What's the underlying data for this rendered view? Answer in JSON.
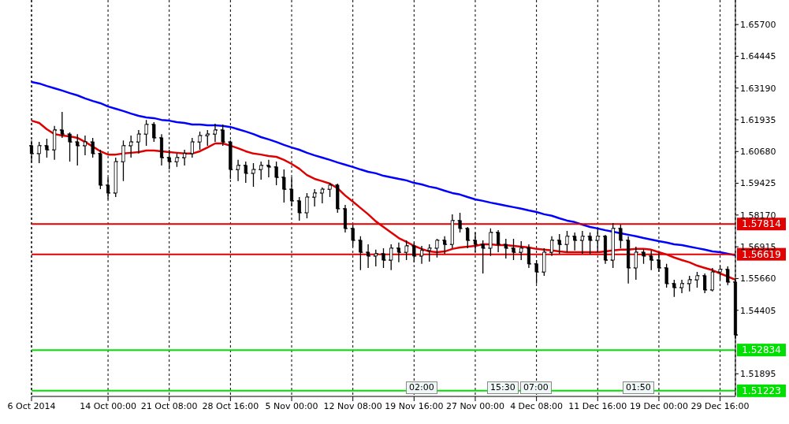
{
  "chart_data": {
    "type": "candlestick",
    "categories": [
      "6 Oct 2014",
      null,
      null,
      null,
      null,
      null,
      null,
      null,
      null,
      null,
      "14 Oct 00:00",
      null,
      null,
      null,
      null,
      null,
      null,
      null,
      "21 Oct 08:00",
      null,
      null,
      null,
      null,
      null,
      null,
      null,
      "28 Oct 16:00",
      null,
      null,
      null,
      null,
      null,
      null,
      null,
      "5 Nov 00:00",
      null,
      null,
      null,
      null,
      null,
      null,
      null,
      "12 Nov 08:00",
      null,
      null,
      null,
      null,
      null,
      null,
      null,
      "19 Nov 16:00",
      null,
      null,
      null,
      null,
      null,
      null,
      null,
      "27 Nov 00:00",
      null,
      null,
      null,
      null,
      null,
      null,
      null,
      "4 Dec 08:00",
      null,
      null,
      null,
      null,
      null,
      null,
      null,
      "11 Dec 16:00",
      null,
      null,
      null,
      null,
      null,
      null,
      null,
      "19 Dec 00:00",
      null,
      null,
      null,
      null,
      null,
      null,
      null,
      "29 Dec 16:00",
      null,
      null
    ],
    "series": [
      {
        "color": "#000000",
        "ohlc": [
          [
            1.6091,
            1.6112,
            1.6028,
            1.606
          ],
          [
            1.606,
            1.6106,
            1.6022,
            1.6091
          ],
          [
            1.6091,
            1.6119,
            1.6044,
            1.6075
          ],
          [
            1.6075,
            1.6169,
            1.6035,
            1.6153
          ],
          [
            1.6153,
            1.6225,
            1.6122,
            1.6137
          ],
          [
            1.6137,
            1.6144,
            1.6028,
            1.6106
          ],
          [
            1.6106,
            1.6137,
            1.6013,
            1.6091
          ],
          [
            1.6091,
            1.6131,
            1.6053,
            1.6106
          ],
          [
            1.6106,
            1.6122,
            1.6044,
            1.606
          ],
          [
            1.606,
            1.6075,
            1.5919,
            1.5935
          ],
          [
            1.5935,
            1.5966,
            1.5879,
            1.5904
          ],
          [
            1.5904,
            1.6044,
            1.5888,
            1.6028
          ],
          [
            1.6028,
            1.6112,
            1.5951,
            1.6091
          ],
          [
            1.6091,
            1.6131,
            1.6044,
            1.6106
          ],
          [
            1.6106,
            1.6153,
            1.606,
            1.6137
          ],
          [
            1.6137,
            1.6193,
            1.6091,
            1.6175
          ],
          [
            1.6175,
            1.6184,
            1.6106,
            1.6122
          ],
          [
            1.6122,
            1.6137,
            1.6013,
            1.6044
          ],
          [
            1.6044,
            1.6075,
            1.5997,
            1.6028
          ],
          [
            1.6028,
            1.606,
            1.6007,
            1.6044
          ],
          [
            1.6044,
            1.6075,
            1.6013,
            1.606
          ],
          [
            1.606,
            1.6122,
            1.6044,
            1.6106
          ],
          [
            1.6106,
            1.6147,
            1.6075,
            1.6131
          ],
          [
            1.6131,
            1.6153,
            1.6091,
            1.6137
          ],
          [
            1.6137,
            1.6178,
            1.6106,
            1.6153
          ],
          [
            1.6153,
            1.6175,
            1.6091,
            1.6106
          ],
          [
            1.6106,
            1.6112,
            1.596,
            1.5997
          ],
          [
            1.5997,
            1.6035,
            1.5951,
            1.6013
          ],
          [
            1.6013,
            1.6028,
            1.5944,
            1.5982
          ],
          [
            1.5982,
            1.6022,
            1.5929,
            1.5997
          ],
          [
            1.5997,
            1.6028,
            1.5957,
            1.6013
          ],
          [
            1.6013,
            1.6035,
            1.5966,
            1.6007
          ],
          [
            1.6007,
            1.6028,
            1.5935,
            1.5966
          ],
          [
            1.5966,
            1.5997,
            1.5866,
            1.5919
          ],
          [
            1.5919,
            1.5966,
            1.5851,
            1.5873
          ],
          [
            1.5873,
            1.5888,
            1.5795,
            1.5826
          ],
          [
            1.5826,
            1.5904,
            1.5804,
            1.5888
          ],
          [
            1.5888,
            1.5919,
            1.5851,
            1.5904
          ],
          [
            1.5904,
            1.5926,
            1.5863,
            1.5919
          ],
          [
            1.5919,
            1.5944,
            1.5888,
            1.5935
          ],
          [
            1.5935,
            1.5941,
            1.5826,
            1.5842
          ],
          [
            1.5842,
            1.5857,
            1.5748,
            1.5764
          ],
          [
            1.5764,
            1.5779,
            1.5692,
            1.5717
          ],
          [
            1.5717,
            1.5733,
            1.5599,
            1.567
          ],
          [
            1.567,
            1.5701,
            1.5608,
            1.5655
          ],
          [
            1.5655,
            1.568,
            1.5614,
            1.5664
          ],
          [
            1.5664,
            1.5686,
            1.5608,
            1.5639
          ],
          [
            1.5639,
            1.5701,
            1.5599,
            1.5686
          ],
          [
            1.5686,
            1.5708,
            1.563,
            1.567
          ],
          [
            1.567,
            1.5717,
            1.5639,
            1.5695
          ],
          [
            1.5695,
            1.5708,
            1.563,
            1.5655
          ],
          [
            1.5655,
            1.5695,
            1.5624,
            1.5677
          ],
          [
            1.5677,
            1.5701,
            1.5633,
            1.5686
          ],
          [
            1.5686,
            1.5723,
            1.5649,
            1.5717
          ],
          [
            1.5717,
            1.5733,
            1.5664,
            1.5701
          ],
          [
            1.5701,
            1.582,
            1.5686,
            1.5795
          ],
          [
            1.5795,
            1.5826,
            1.5748,
            1.5764
          ],
          [
            1.5764,
            1.577,
            1.5686,
            1.5717
          ],
          [
            1.5717,
            1.5748,
            1.567,
            1.5701
          ],
          [
            1.5701,
            1.5717,
            1.5586,
            1.5686
          ],
          [
            1.5686,
            1.5764,
            1.5655,
            1.5748
          ],
          [
            1.5748,
            1.5757,
            1.567,
            1.5701
          ],
          [
            1.5701,
            1.5723,
            1.5645,
            1.5686
          ],
          [
            1.5686,
            1.5723,
            1.5639,
            1.567
          ],
          [
            1.567,
            1.5714,
            1.5639,
            1.5686
          ],
          [
            1.5686,
            1.5701,
            1.5608,
            1.5624
          ],
          [
            1.5624,
            1.5639,
            1.5546,
            1.5592
          ],
          [
            1.5592,
            1.5686,
            1.5577,
            1.567
          ],
          [
            1.567,
            1.5733,
            1.5655,
            1.5717
          ],
          [
            1.5717,
            1.5742,
            1.5664,
            1.5701
          ],
          [
            1.5701,
            1.5754,
            1.567,
            1.5733
          ],
          [
            1.5733,
            1.5748,
            1.5677,
            1.5717
          ],
          [
            1.5717,
            1.5754,
            1.5664,
            1.5733
          ],
          [
            1.5733,
            1.5748,
            1.5661,
            1.5717
          ],
          [
            1.5717,
            1.5764,
            1.567,
            1.5733
          ],
          [
            1.5733,
            1.5739,
            1.5624,
            1.5639
          ],
          [
            1.5639,
            1.5785,
            1.5608,
            1.5764
          ],
          [
            1.5764,
            1.5779,
            1.5686,
            1.5717
          ],
          [
            1.5717,
            1.5733,
            1.5546,
            1.5608
          ],
          [
            1.5608,
            1.5692,
            1.5561,
            1.567
          ],
          [
            1.567,
            1.568,
            1.5624,
            1.5655
          ],
          [
            1.5655,
            1.5677,
            1.5599,
            1.5639
          ],
          [
            1.5639,
            1.567,
            1.5592,
            1.5608
          ],
          [
            1.5608,
            1.5624,
            1.553,
            1.5546
          ],
          [
            1.5546,
            1.5561,
            1.5493,
            1.553
          ],
          [
            1.553,
            1.5561,
            1.5508,
            1.5546
          ],
          [
            1.5546,
            1.5577,
            1.5515,
            1.5561
          ],
          [
            1.5561,
            1.5592,
            1.553,
            1.5577
          ],
          [
            1.5577,
            1.5586,
            1.5508,
            1.5521
          ],
          [
            1.5521,
            1.5608,
            1.5515,
            1.5592
          ],
          [
            1.5592,
            1.5617,
            1.5561,
            1.5602
          ],
          [
            1.5602,
            1.5614,
            1.554,
            1.5552
          ],
          [
            1.5552,
            1.5561,
            1.5328,
            1.5343
          ]
        ]
      },
      {
        "type": "line",
        "color": "#e00000",
        "values": [
          1.619,
          1.6181,
          1.6156,
          1.6137,
          1.6131,
          1.6128,
          1.6122,
          1.6106,
          1.6088,
          1.6069,
          1.6056,
          1.6056,
          1.606,
          1.6063,
          1.6066,
          1.6072,
          1.6072,
          1.6069,
          1.6066,
          1.6063,
          1.606,
          1.606,
          1.6069,
          1.6084,
          1.61,
          1.61,
          1.6091,
          1.6081,
          1.6069,
          1.606,
          1.6056,
          1.605,
          1.6047,
          1.6035,
          1.6019,
          1.6,
          1.5975,
          1.596,
          1.5951,
          1.5941,
          1.5923,
          1.5894,
          1.587,
          1.5845,
          1.582,
          1.5792,
          1.577,
          1.5748,
          1.5726,
          1.5711,
          1.5695,
          1.5683,
          1.5673,
          1.567,
          1.5673,
          1.5683,
          1.5689,
          1.5692,
          1.5695,
          1.5701,
          1.5701,
          1.5698,
          1.5698,
          1.5695,
          1.5692,
          1.5689,
          1.5683,
          1.568,
          1.5677,
          1.5673,
          1.567,
          1.567,
          1.567,
          1.567,
          1.567,
          1.5673,
          1.5677,
          1.568,
          1.568,
          1.5683,
          1.5683,
          1.568,
          1.567,
          1.5661,
          1.5649,
          1.5639,
          1.563,
          1.5617,
          1.5608,
          1.5599,
          1.5586,
          1.5574,
          1.5561
        ]
      },
      {
        "type": "line",
        "color": "#0000ff",
        "values": [
          1.6343,
          1.6337,
          1.6327,
          1.6318,
          1.6309,
          1.6299,
          1.629,
          1.6278,
          1.6268,
          1.6259,
          1.6246,
          1.6237,
          1.6228,
          1.6218,
          1.6209,
          1.6203,
          1.62,
          1.6193,
          1.619,
          1.6184,
          1.6181,
          1.6175,
          1.6175,
          1.6172,
          1.6172,
          1.6169,
          1.6165,
          1.6156,
          1.6147,
          1.6137,
          1.6125,
          1.6116,
          1.6106,
          1.6094,
          1.6084,
          1.6075,
          1.6063,
          1.6053,
          1.6044,
          1.6035,
          1.6025,
          1.6016,
          1.6007,
          1.5997,
          1.5988,
          1.5982,
          1.5972,
          1.5966,
          1.596,
          1.5954,
          1.5944,
          1.5938,
          1.5929,
          1.5923,
          1.5913,
          1.5904,
          1.5898,
          1.5888,
          1.5879,
          1.5873,
          1.5866,
          1.586,
          1.5854,
          1.5848,
          1.5842,
          1.5835,
          1.5829,
          1.582,
          1.5814,
          1.5804,
          1.5795,
          1.5789,
          1.5779,
          1.577,
          1.5764,
          1.5757,
          1.5751,
          1.5745,
          1.5739,
          1.5733,
          1.5726,
          1.572,
          1.5714,
          1.5708,
          1.5701,
          1.5698,
          1.5692,
          1.5686,
          1.568,
          1.5673,
          1.567,
          1.5664,
          1.5658
        ]
      }
    ],
    "ylim": [
      1.51,
      1.6667
    ],
    "yticks": [
      {
        "value": 1.657,
        "label": "1.65700"
      },
      {
        "value": 1.64445,
        "label": "1.64445"
      },
      {
        "value": 1.6319,
        "label": "1.63190"
      },
      {
        "value": 1.61935,
        "label": "1.61935"
      },
      {
        "value": 1.6068,
        "label": "1.60680"
      },
      {
        "value": 1.59425,
        "label": "1.59425"
      },
      {
        "value": 1.5817,
        "label": "1.58170"
      },
      {
        "value": 1.56915,
        "label": "1.56915"
      },
      {
        "value": 1.5566,
        "label": "1.55660"
      },
      {
        "value": 1.54405,
        "label": "1.54405"
      },
      {
        "value": 1.51895,
        "label": "1.51895"
      }
    ],
    "ref_lines": [
      {
        "axis": "y",
        "value": 1.57814,
        "label": "1.57814",
        "color": "#e00000"
      },
      {
        "axis": "y",
        "value": 1.56619,
        "label": "1.56619",
        "color": "#e00000"
      },
      {
        "axis": "y",
        "value": 1.52834,
        "label": "1.52834",
        "color": "#00e000"
      },
      {
        "axis": "y",
        "value": 1.51223,
        "label": "1.51223",
        "color": "#00e000"
      }
    ],
    "annotations": [
      "02:00",
      "15:30",
      "07:00",
      "01:50"
    ],
    "grid": "x"
  }
}
